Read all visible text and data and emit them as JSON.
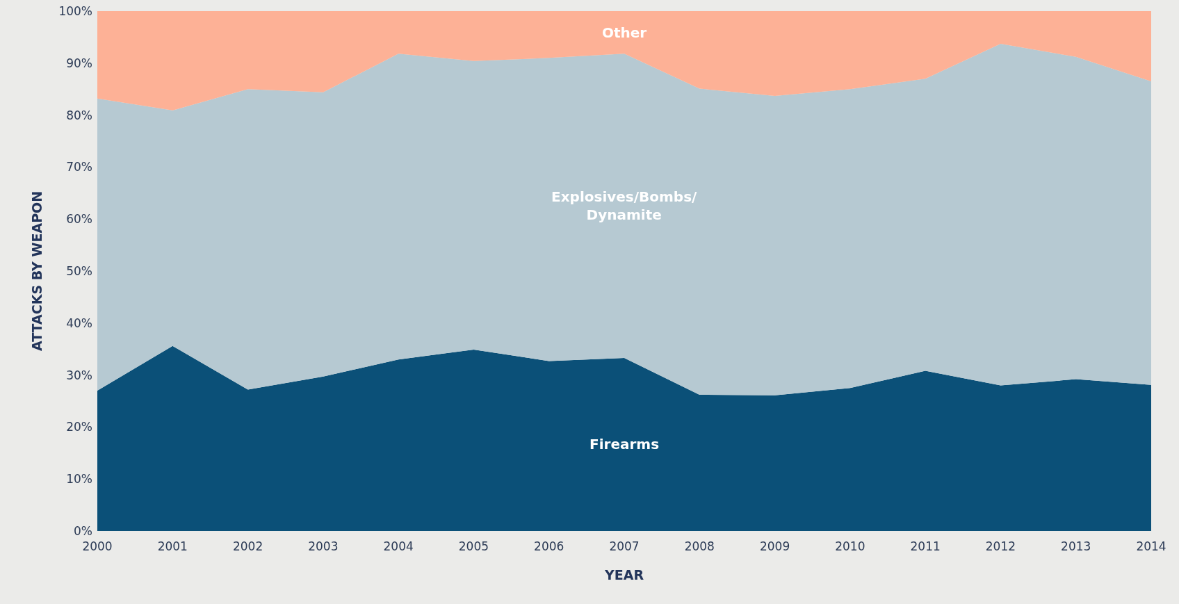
{
  "chart_data": {
    "type": "area",
    "stacked": true,
    "xlabel": "YEAR",
    "ylabel": "ATTACKS BY WEAPON",
    "x": [
      2000,
      2001,
      2002,
      2003,
      2004,
      2005,
      2006,
      2007,
      2008,
      2009,
      2010,
      2011,
      2012,
      2013,
      2014
    ],
    "series": [
      {
        "name": "Firearms",
        "color": "#0b5078",
        "values": [
          27,
          35.6,
          27.2,
          29.7,
          33,
          34.9,
          32.7,
          33.3,
          26.2,
          26.1,
          27.5,
          30.8,
          28,
          29.2,
          28.1
        ]
      },
      {
        "name": "Explosives/Bombs/\nDynamite",
        "color": "#b6c9d2",
        "values": [
          56.2,
          45.3,
          57.8,
          54.7,
          58.8,
          55.5,
          58.3,
          58.5,
          58.9,
          57.6,
          57.5,
          56.2,
          65.7,
          62,
          58.4
        ]
      },
      {
        "name": "Other",
        "color": "#fdb196",
        "values": [
          16.8,
          19.1,
          15,
          15.6,
          8.2,
          9.6,
          9,
          8.2,
          14.9,
          16.3,
          15,
          13,
          6.3,
          8.8,
          13.5
        ]
      }
    ],
    "xlim": [
      2000,
      2014
    ],
    "xticks": [
      2000,
      2001,
      2002,
      2003,
      2004,
      2005,
      2006,
      2007,
      2008,
      2009,
      2010,
      2011,
      2012,
      2013,
      2014
    ],
    "ylim": [
      0,
      100
    ],
    "yticks": [
      {
        "value": 0,
        "label": "0%"
      },
      {
        "value": 10,
        "label": "10%"
      },
      {
        "value": 20,
        "label": "20%"
      },
      {
        "value": 30,
        "label": "30%"
      },
      {
        "value": 40,
        "label": "40%"
      },
      {
        "value": 50,
        "label": "50%"
      },
      {
        "value": 60,
        "label": "60%"
      },
      {
        "value": 70,
        "label": "70%"
      },
      {
        "value": 80,
        "label": "80%"
      },
      {
        "value": 90,
        "label": "90%"
      },
      {
        "value": 100,
        "label": "100%"
      }
    ],
    "legend": false,
    "marker": "none"
  }
}
